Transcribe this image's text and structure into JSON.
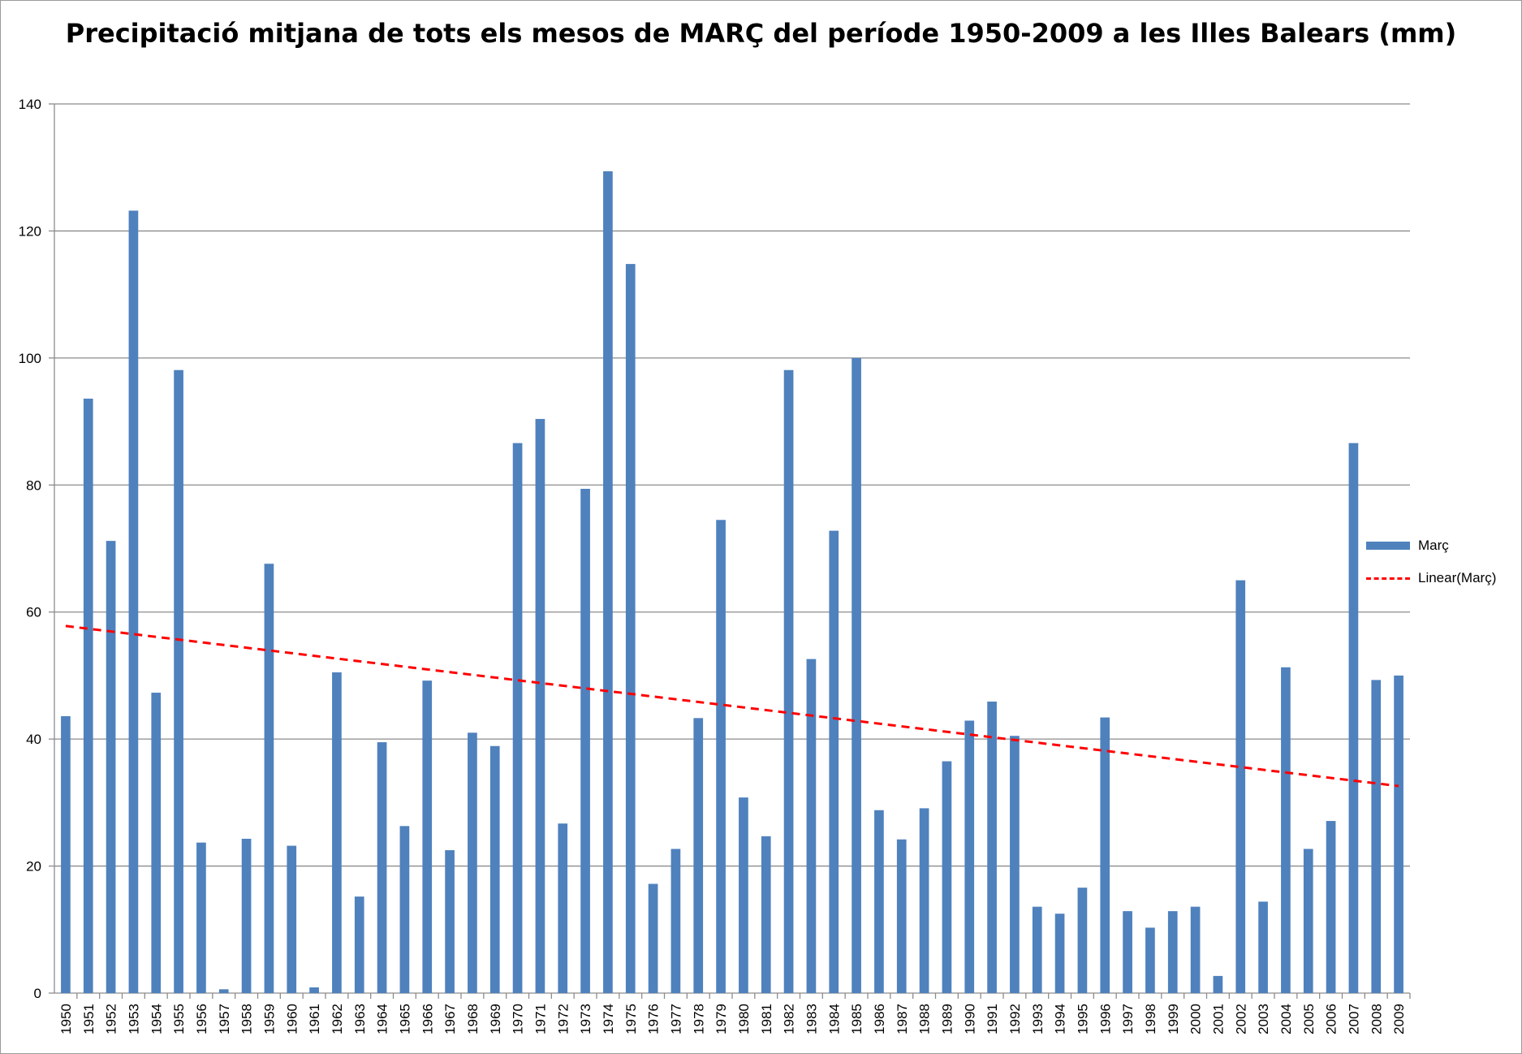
{
  "chart_data": {
    "type": "bar",
    "title": "Precipitació mitjana de tots els mesos de MARÇ del període 1950-2009 a les Illes Balears (mm)",
    "xlabel": "",
    "ylabel": "",
    "ylim": [
      0,
      140
    ],
    "yticks": [
      "0",
      "20",
      "40",
      "60",
      "80",
      "100",
      "120",
      "140"
    ],
    "grid": true,
    "legend_position": "right",
    "categories": [
      "1950",
      "1951",
      "1952",
      "1953",
      "1954",
      "1955",
      "1956",
      "1957",
      "1958",
      "1959",
      "1960",
      "1961",
      "1962",
      "1963",
      "1964",
      "1965",
      "1966",
      "1967",
      "1968",
      "1969",
      "1970",
      "1971",
      "1972",
      "1973",
      "1974",
      "1975",
      "1976",
      "1977",
      "1978",
      "1979",
      "1980",
      "1981",
      "1982",
      "1983",
      "1984",
      "1985",
      "1986",
      "1987",
      "1988",
      "1989",
      "1990",
      "1991",
      "1992",
      "1993",
      "1994",
      "1995",
      "1996",
      "1997",
      "1998",
      "1999",
      "2000",
      "2001",
      "2002",
      "2003",
      "2004",
      "2005",
      "2006",
      "2007",
      "2008",
      "2009"
    ],
    "series": [
      {
        "name": "Març",
        "color": "#4f81bd",
        "values": [
          43.6,
          93.6,
          71.2,
          123.2,
          47.3,
          98.1,
          23.7,
          0.6,
          24.3,
          67.6,
          23.2,
          0.9,
          50.5,
          15.2,
          39.5,
          26.3,
          49.2,
          22.5,
          41.0,
          38.9,
          86.6,
          90.4,
          26.7,
          79.4,
          129.4,
          114.8,
          17.2,
          22.7,
          43.3,
          74.5,
          30.8,
          24.7,
          98.1,
          52.6,
          72.8,
          100.0,
          28.8,
          24.2,
          29.1,
          36.5,
          42.9,
          45.9,
          40.5,
          13.6,
          12.5,
          16.6,
          43.4,
          12.9,
          10.3,
          12.9,
          13.6,
          2.7,
          65.0,
          14.4,
          51.3,
          22.7,
          27.1,
          86.6,
          49.3,
          50.0
        ]
      }
    ],
    "trendline": {
      "name": "Linear(Març)",
      "color": "#ff0000",
      "type": "linear",
      "start": 57.8,
      "end": 32.6
    }
  }
}
